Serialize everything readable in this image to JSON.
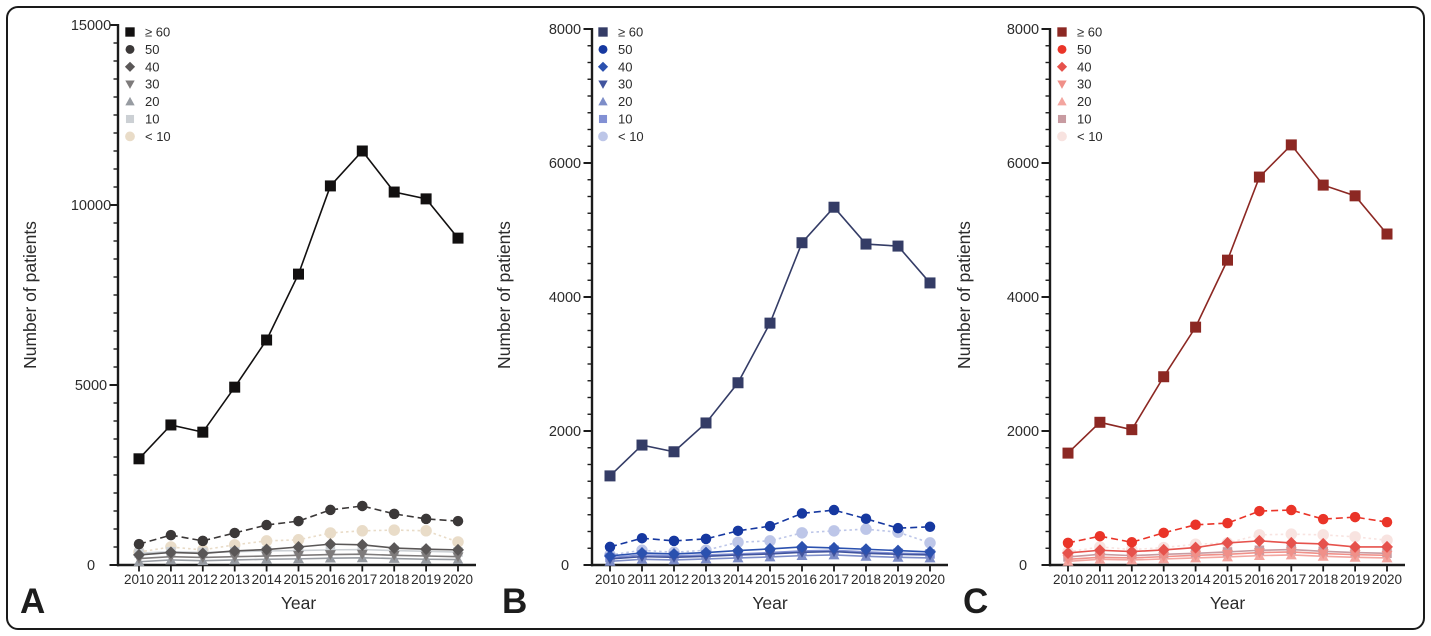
{
  "figure": {
    "background": "#ffffff",
    "border_color": "#1a1a1a",
    "axis_color": "#1b1b1b",
    "text_color": "#2b2b2b"
  },
  "chart_data": [
    {
      "type": "line",
      "panel_label": "A",
      "xlabel": "Year",
      "ylabel": "Number of patients",
      "categories": [
        2010,
        2011,
        2012,
        2013,
        2014,
        2015,
        2016,
        2017,
        2018,
        2019,
        2020
      ],
      "ylim": [
        0,
        15000
      ],
      "yticks": [
        0,
        5000,
        10000,
        15000
      ],
      "minor_step": 500,
      "legend_position": "top-left",
      "grid": false,
      "series": [
        {
          "name": "≥ 60",
          "marker": "square",
          "color": "#121010",
          "dash": "",
          "values": [
            2950,
            3890,
            3690,
            4940,
            6250,
            8080,
            10530,
            11500,
            10360,
            10170,
            9080
          ]
        },
        {
          "name": "50",
          "marker": "circle",
          "color": "#3b3838",
          "dash": "7 4",
          "values": [
            580,
            830,
            670,
            890,
            1110,
            1220,
            1530,
            1640,
            1420,
            1280,
            1220
          ]
        },
        {
          "name": "40",
          "marker": "diamond",
          "color": "#5a5757",
          "dash": "",
          "values": [
            280,
            350,
            320,
            390,
            430,
            500,
            580,
            560,
            470,
            440,
            420
          ]
        },
        {
          "name": "30",
          "marker": "triangle-down",
          "color": "#7e7b7b",
          "dash": "",
          "values": [
            180,
            230,
            210,
            230,
            250,
            270,
            290,
            300,
            270,
            250,
            230
          ]
        },
        {
          "name": "20",
          "marker": "triangle-up",
          "color": "#979ba1",
          "dash": "",
          "values": [
            90,
            140,
            120,
            140,
            160,
            170,
            190,
            200,
            180,
            160,
            150
          ]
        },
        {
          "name": "10",
          "marker": "square",
          "color": "#ccd0d4",
          "dash": "",
          "values": [
            330,
            370,
            350,
            370,
            390,
            400,
            420,
            430,
            400,
            380,
            360
          ]
        },
        {
          "name": "< 10",
          "marker": "circle",
          "color": "#e9dcc8",
          "dash": "2.5 3",
          "values": [
            360,
            500,
            420,
            560,
            670,
            700,
            890,
            950,
            970,
            950,
            640
          ]
        }
      ]
    },
    {
      "type": "line",
      "panel_label": "B",
      "xlabel": "Year",
      "ylabel": "Number of patients",
      "categories": [
        2010,
        2011,
        2012,
        2013,
        2014,
        2015,
        2016,
        2017,
        2018,
        2019,
        2020
      ],
      "ylim": [
        0,
        8000
      ],
      "yticks": [
        0,
        2000,
        4000,
        6000,
        8000
      ],
      "minor_step": 250,
      "legend_position": "top-left",
      "grid": false,
      "series": [
        {
          "name": "≥ 60",
          "marker": "square",
          "color": "#343c66",
          "dash": "",
          "values": [
            1330,
            1790,
            1690,
            2120,
            2720,
            3610,
            4810,
            5340,
            4790,
            4760,
            4210
          ]
        },
        {
          "name": "50",
          "marker": "circle",
          "color": "#1638a0",
          "dash": "7 4",
          "values": [
            270,
            400,
            360,
            390,
            510,
            580,
            770,
            820,
            690,
            550,
            570
          ]
        },
        {
          "name": "40",
          "marker": "diamond",
          "color": "#2b51af",
          "dash": "",
          "values": [
            135,
            180,
            165,
            185,
            215,
            240,
            270,
            255,
            235,
            215,
            195
          ]
        },
        {
          "name": "30",
          "marker": "triangle-down",
          "color": "#41549e",
          "dash": "",
          "values": [
            90,
            125,
            115,
            130,
            150,
            165,
            190,
            200,
            175,
            160,
            150
          ]
        },
        {
          "name": "20",
          "marker": "triangle-up",
          "color": "#7d8dc8",
          "dash": "",
          "values": [
            55,
            85,
            75,
            90,
            105,
            120,
            140,
            150,
            130,
            115,
            105
          ]
        },
        {
          "name": "10",
          "marker": "square",
          "color": "#8290d4",
          "dash": "",
          "values": [
            110,
            150,
            135,
            150,
            165,
            185,
            210,
            220,
            195,
            175,
            165
          ]
        },
        {
          "name": "< 10",
          "marker": "circle",
          "color": "#bdc6e8",
          "dash": "2.5 3",
          "values": [
            150,
            220,
            190,
            220,
            340,
            360,
            480,
            510,
            535,
            490,
            330
          ]
        }
      ]
    },
    {
      "type": "line",
      "panel_label": "C",
      "xlabel": "Year",
      "ylabel": "Number of patients",
      "categories": [
        2010,
        2011,
        2012,
        2013,
        2014,
        2015,
        2016,
        2017,
        2018,
        2019,
        2020
      ],
      "ylim": [
        0,
        8000
      ],
      "yticks": [
        0,
        2000,
        4000,
        6000,
        8000
      ],
      "minor_step": 250,
      "legend_position": "top-left",
      "grid": false,
      "series": [
        {
          "name": "≥ 60",
          "marker": "square",
          "color": "#8c2823",
          "dash": "",
          "values": [
            1670,
            2130,
            2020,
            2810,
            3550,
            4550,
            5790,
            6270,
            5670,
            5510,
            4940
          ]
        },
        {
          "name": "50",
          "marker": "circle",
          "color": "#ea3428",
          "dash": "7 4",
          "values": [
            330,
            430,
            340,
            480,
            600,
            625,
            805,
            820,
            685,
            715,
            640
          ]
        },
        {
          "name": "40",
          "marker": "diamond",
          "color": "#e6524c",
          "dash": "",
          "values": [
            180,
            220,
            200,
            225,
            260,
            330,
            360,
            330,
            315,
            270,
            270
          ]
        },
        {
          "name": "30",
          "marker": "triangle-down",
          "color": "#f09089",
          "dash": "",
          "values": [
            85,
            115,
            105,
            125,
            145,
            160,
            185,
            195,
            170,
            155,
            145
          ]
        },
        {
          "name": "20",
          "marker": "triangle-up",
          "color": "#f3a59f",
          "dash": "",
          "values": [
            55,
            85,
            75,
            90,
            105,
            120,
            140,
            150,
            130,
            115,
            105
          ]
        },
        {
          "name": "10",
          "marker": "square",
          "color": "#c89ba1",
          "dash": "",
          "values": [
            120,
            160,
            140,
            160,
            175,
            195,
            220,
            230,
            205,
            185,
            175
          ]
        },
        {
          "name": "< 10",
          "marker": "circle",
          "color": "#f8e3e0",
          "dash": "2.5 3",
          "values": [
            195,
            270,
            230,
            260,
            310,
            330,
            450,
            460,
            450,
            420,
            370
          ]
        }
      ]
    }
  ]
}
